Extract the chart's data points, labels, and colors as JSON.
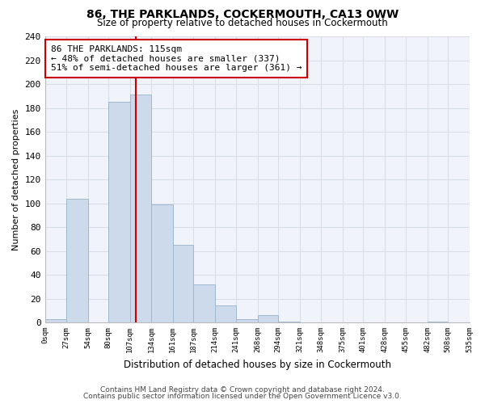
{
  "title": "86, THE PARKLANDS, COCKERMOUTH, CA13 0WW",
  "subtitle": "Size of property relative to detached houses in Cockermouth",
  "xlabel": "Distribution of detached houses by size in Cockermouth",
  "ylabel": "Number of detached properties",
  "bar_color": "#ccdaeb",
  "bar_edge_color": "#a0b8d0",
  "property_line_x": 115,
  "property_line_color": "#cc0000",
  "annotation_line1": "86 THE PARKLANDS: 115sqm",
  "annotation_line2": "← 48% of detached houses are smaller (337)",
  "annotation_line3": "51% of semi-detached houses are larger (361) →",
  "bin_edges": [
    0,
    27,
    54,
    80,
    107,
    134,
    161,
    187,
    214,
    241,
    268,
    294,
    321,
    348,
    375,
    401,
    428,
    455,
    482,
    508,
    535
  ],
  "bin_counts": [
    3,
    104,
    0,
    185,
    191,
    99,
    65,
    32,
    14,
    3,
    6,
    1,
    0,
    0,
    0,
    0,
    0,
    0,
    1,
    0
  ],
  "tick_labels": [
    "0sqm",
    "27sqm",
    "54sqm",
    "80sqm",
    "107sqm",
    "134sqm",
    "161sqm",
    "187sqm",
    "214sqm",
    "241sqm",
    "268sqm",
    "294sqm",
    "321sqm",
    "348sqm",
    "375sqm",
    "401sqm",
    "428sqm",
    "455sqm",
    "482sqm",
    "508sqm",
    "535sqm"
  ],
  "ylim": [
    0,
    240
  ],
  "yticks": [
    0,
    20,
    40,
    60,
    80,
    100,
    120,
    140,
    160,
    180,
    200,
    220,
    240
  ],
  "footnote1": "Contains HM Land Registry data © Crown copyright and database right 2024.",
  "footnote2": "Contains public sector information licensed under the Open Government Licence v3.0.",
  "grid_color": "#d8dde8",
  "background_color": "#ffffff",
  "ax_background": "#f0f4fa"
}
